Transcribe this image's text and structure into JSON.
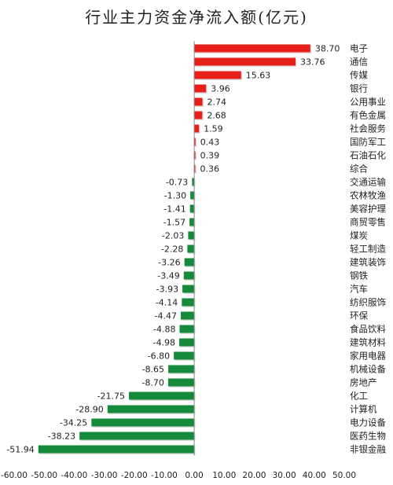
{
  "chart_data": {
    "type": "bar",
    "orientation": "horizontal",
    "title": "行业主力资金净流入额(亿元)",
    "xlim": [
      -60,
      50
    ],
    "xticks": [
      "-60.00",
      "-50.00",
      "-40.00",
      "-30.00",
      "-20.00",
      "-10.00",
      "0.00",
      "10.00",
      "20.00",
      "30.00",
      "40.00",
      "50.00"
    ],
    "categories": [
      "电子",
      "通信",
      "传媒",
      "银行",
      "公用事业",
      "有色金属",
      "社会服务",
      "国防军工",
      "石油石化",
      "综合",
      "交通运输",
      "农林牧渔",
      "美容护理",
      "商贸零售",
      "煤炭",
      "轻工制造",
      "建筑装饰",
      "钢铁",
      "汽车",
      "纺织服饰",
      "环保",
      "食品饮料",
      "建筑材料",
      "家用电器",
      "机械设备",
      "房地产",
      "化工",
      "计算机",
      "电力设备",
      "医药生物",
      "非银金融"
    ],
    "values": [
      38.7,
      33.76,
      15.63,
      3.96,
      2.74,
      2.68,
      1.59,
      0.43,
      0.39,
      0.36,
      -0.73,
      -1.3,
      -1.41,
      -1.57,
      -2.03,
      -2.28,
      -3.26,
      -3.49,
      -3.93,
      -4.14,
      -4.47,
      -4.88,
      -4.98,
      -6.8,
      -8.65,
      -8.7,
      -21.75,
      -28.9,
      -34.25,
      -38.23,
      -51.94
    ],
    "labels": [
      "38.70",
      "33.76",
      "15.63",
      "3.96",
      "2.74",
      "2.68",
      "1.59",
      "0.43",
      "0.39",
      "0.36",
      "-0.73",
      "-1.30",
      "-1.41",
      "-1.57",
      "-2.03",
      "-2.28",
      "-3.26",
      "-3.49",
      "-3.93",
      "-4.14",
      "-4.47",
      "-4.88",
      "-4.98",
      "-6.80",
      "-8.65",
      "-8.70",
      "-21.75",
      "-28.90",
      "-34.25",
      "-38.23",
      "-51.94"
    ],
    "colors": {
      "positive": "#e8201c",
      "negative": "#158a3a",
      "axis": "#888888"
    }
  }
}
